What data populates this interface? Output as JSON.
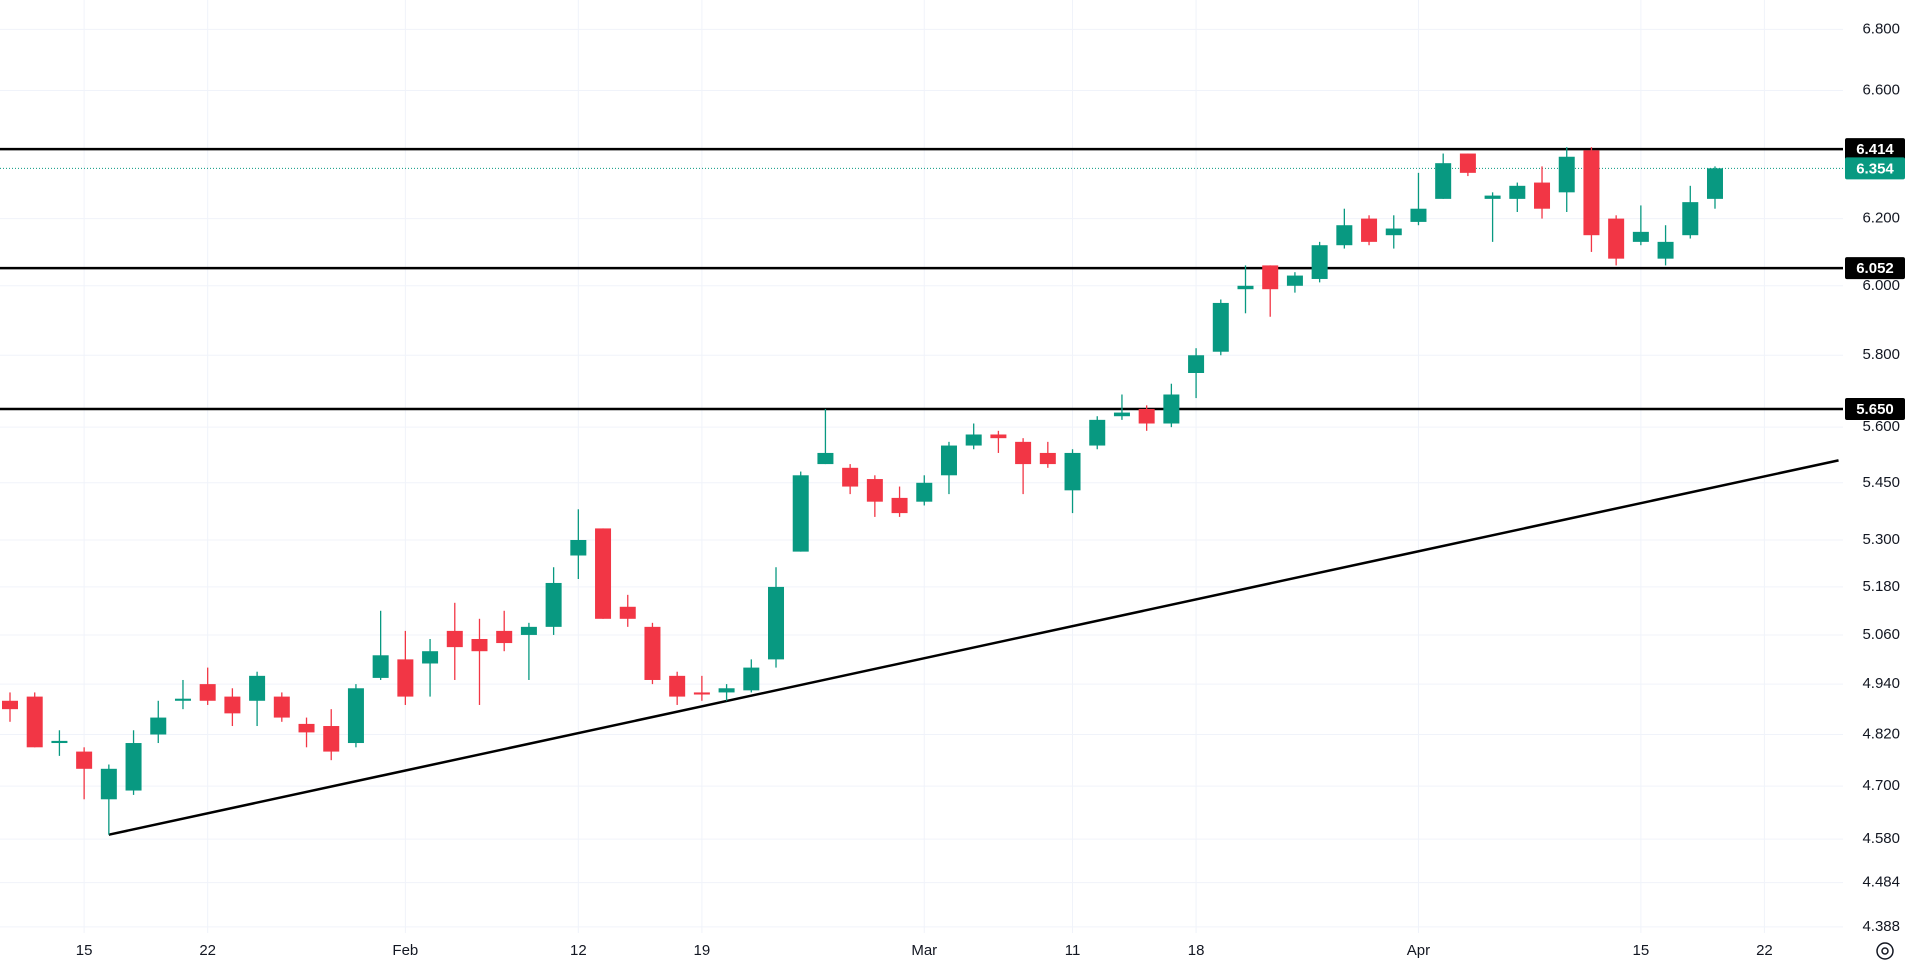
{
  "chart_data": {
    "type": "candlestick",
    "log_scale": true,
    "grid": true,
    "up_color": "#089981",
    "down_color": "#f23645",
    "categories": [
      null,
      null,
      null,
      "15",
      null,
      null,
      null,
      null,
      "22",
      null,
      null,
      null,
      null,
      null,
      null,
      null,
      "Feb",
      null,
      null,
      null,
      null,
      null,
      null,
      "12",
      null,
      null,
      null,
      null,
      "19",
      null,
      null,
      null,
      null,
      null,
      null,
      null,
      null,
      "Mar",
      null,
      null,
      null,
      null,
      null,
      "11",
      null,
      null,
      null,
      null,
      "18",
      null,
      null,
      null,
      null,
      null,
      null,
      null,
      null,
      "Apr",
      null,
      null,
      null,
      null,
      null,
      null,
      null,
      null,
      "15",
      null,
      null,
      null,
      null,
      "22"
    ],
    "open": [
      4.9,
      4.91,
      4.8,
      4.78,
      4.67,
      4.69,
      4.82,
      4.9,
      4.94,
      4.91,
      4.9,
      4.91,
      4.845,
      4.84,
      4.8,
      4.955,
      5.0,
      4.99,
      5.07,
      5.05,
      5.07,
      5.06,
      5.08,
      5.26,
      5.33,
      5.13,
      5.08,
      4.96,
      4.92,
      4.92,
      4.925,
      5.0,
      5.27,
      5.5,
      5.49,
      5.46,
      5.41,
      5.4,
      5.47,
      5.55,
      5.58,
      5.56,
      5.53,
      5.43,
      5.55,
      5.63,
      5.65,
      5.61,
      5.75,
      5.81,
      5.99,
      6.06,
      6.0,
      6.02,
      6.12,
      6.2,
      6.15,
      6.19,
      6.26,
      6.4,
      6.26,
      6.26,
      6.31,
      6.28,
      6.41,
      6.2,
      6.13,
      6.08,
      6.15,
      6.26,
      null,
      null
    ],
    "high": [
      4.92,
      4.92,
      4.83,
      4.79,
      4.75,
      4.83,
      4.9,
      4.95,
      4.98,
      4.93,
      4.97,
      4.92,
      4.86,
      4.88,
      4.94,
      5.12,
      5.07,
      5.05,
      5.14,
      5.1,
      5.12,
      5.09,
      5.23,
      5.38,
      5.33,
      5.16,
      5.09,
      4.97,
      4.96,
      4.94,
      5.0,
      5.23,
      5.48,
      5.65,
      5.5,
      5.47,
      5.44,
      5.47,
      5.56,
      5.61,
      5.59,
      5.57,
      5.56,
      5.54,
      5.63,
      5.69,
      5.66,
      5.72,
      5.82,
      5.96,
      6.06,
      6.06,
      6.04,
      6.13,
      6.23,
      6.21,
      6.21,
      6.34,
      6.4,
      6.4,
      6.28,
      6.31,
      6.36,
      6.42,
      6.42,
      6.21,
      6.24,
      6.18,
      6.3,
      6.36,
      null,
      null
    ],
    "low": [
      4.85,
      4.79,
      4.77,
      4.67,
      4.59,
      4.68,
      4.8,
      4.88,
      4.89,
      4.84,
      4.84,
      4.85,
      4.79,
      4.76,
      4.79,
      4.95,
      4.89,
      4.91,
      4.95,
      4.89,
      5.02,
      4.95,
      5.06,
      5.2,
      5.1,
      5.08,
      4.94,
      4.89,
      4.9,
      4.9,
      4.92,
      4.98,
      5.27,
      5.5,
      5.42,
      5.36,
      5.36,
      5.39,
      5.42,
      5.54,
      5.53,
      5.42,
      5.49,
      5.37,
      5.54,
      5.62,
      5.59,
      5.6,
      5.68,
      5.8,
      5.92,
      5.91,
      5.98,
      6.01,
      6.11,
      6.12,
      6.11,
      6.18,
      6.26,
      6.33,
      6.13,
      6.22,
      6.2,
      6.22,
      6.1,
      6.06,
      6.12,
      6.06,
      6.14,
      6.23,
      null,
      null
    ],
    "close": [
      4.88,
      4.79,
      4.805,
      4.74,
      4.74,
      4.8,
      4.86,
      4.905,
      4.9,
      4.87,
      4.96,
      4.86,
      4.825,
      4.78,
      4.93,
      5.01,
      4.91,
      5.02,
      5.03,
      5.02,
      5.04,
      5.08,
      5.19,
      5.3,
      5.1,
      5.1,
      4.95,
      4.91,
      4.915,
      4.93,
      4.98,
      5.18,
      5.47,
      5.53,
      5.44,
      5.4,
      5.37,
      5.45,
      5.55,
      5.58,
      5.57,
      5.5,
      5.5,
      5.53,
      5.62,
      5.64,
      5.61,
      5.69,
      5.8,
      5.95,
      6.0,
      5.99,
      6.03,
      6.12,
      6.18,
      6.13,
      6.17,
      6.23,
      6.37,
      6.34,
      6.27,
      6.3,
      6.23,
      6.39,
      6.15,
      6.08,
      6.16,
      6.13,
      6.25,
      6.354,
      null,
      null
    ],
    "ylim": [
      4.375,
      6.898
    ],
    "yticks": [
      {
        "value": 6.8,
        "label": "6.800"
      },
      {
        "value": 6.6,
        "label": "6.600"
      },
      {
        "value": 6.2,
        "label": "6.200"
      },
      {
        "value": 6.0,
        "label": "6.000"
      },
      {
        "value": 5.8,
        "label": "5.800"
      },
      {
        "value": 5.6,
        "label": "5.600"
      },
      {
        "value": 5.45,
        "label": "5.450"
      },
      {
        "value": 5.3,
        "label": "5.300"
      },
      {
        "value": 5.18,
        "label": "5.180"
      },
      {
        "value": 5.06,
        "label": "5.060"
      },
      {
        "value": 4.94,
        "label": "4.940"
      },
      {
        "value": 4.82,
        "label": "4.820"
      },
      {
        "value": 4.7,
        "label": "4.700"
      },
      {
        "value": 4.58,
        "label": "4.580"
      },
      4.484,
      4.388
    ],
    "levels": [
      6.414,
      6.052,
      {
        "value": 5.65,
        "label": "5.650"
      }
    ],
    "level_color": "#000000",
    "last_price": 6.354,
    "last_price_color": "#089981",
    "trendline": {
      "x": [
        4,
        74
      ],
      "values": [
        4.59,
        5.51
      ],
      "color": "#000000"
    }
  }
}
